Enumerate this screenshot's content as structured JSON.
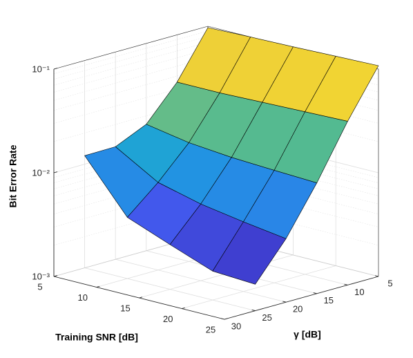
{
  "chart_data": {
    "type": "surface",
    "xlabel": "Training SNR [dB]",
    "ylabel": "γ [dB]",
    "zlabel": "Bit Error Rate",
    "x": [
      5,
      10,
      15,
      20,
      25
    ],
    "y": [
      5,
      10,
      15,
      20,
      25
    ],
    "z": [
      [
        0.097,
        0.1,
        0.102,
        0.105,
        0.108
      ],
      [
        0.035,
        0.035,
        0.036,
        0.037,
        0.038
      ],
      [
        0.0166,
        0.014,
        0.0128,
        0.0122,
        0.0117
      ],
      [
        0.0122,
        0.007,
        0.0055,
        0.0047,
        0.0041
      ],
      [
        0.0121,
        0.0039,
        0.0027,
        0.0019,
        0.0018
      ]
    ],
    "xlim": [
      5,
      25
    ],
    "ylim": [
      5,
      30
    ],
    "zlim": [
      0.001,
      0.1
    ],
    "xticks": [
      5,
      10,
      15,
      20,
      25
    ],
    "yticks": [
      5,
      10,
      15,
      20,
      25,
      30
    ],
    "zticks": [
      {
        "value": 0.001,
        "label": "10⁻³"
      },
      {
        "value": 0.01,
        "label": "10⁻²"
      },
      {
        "value": 0.1,
        "label": "10⁻¹"
      }
    ],
    "zscale": "log",
    "grid": true,
    "colormap": [
      "#352a87",
      "#3f3fd0",
      "#4258ec",
      "#2a84e8",
      "#1c9fdd",
      "#2eb7a4",
      "#87bf77",
      "#e0bf48",
      "#f5d82e",
      "#f9fb0e"
    ],
    "edgecolor": "#000000"
  }
}
